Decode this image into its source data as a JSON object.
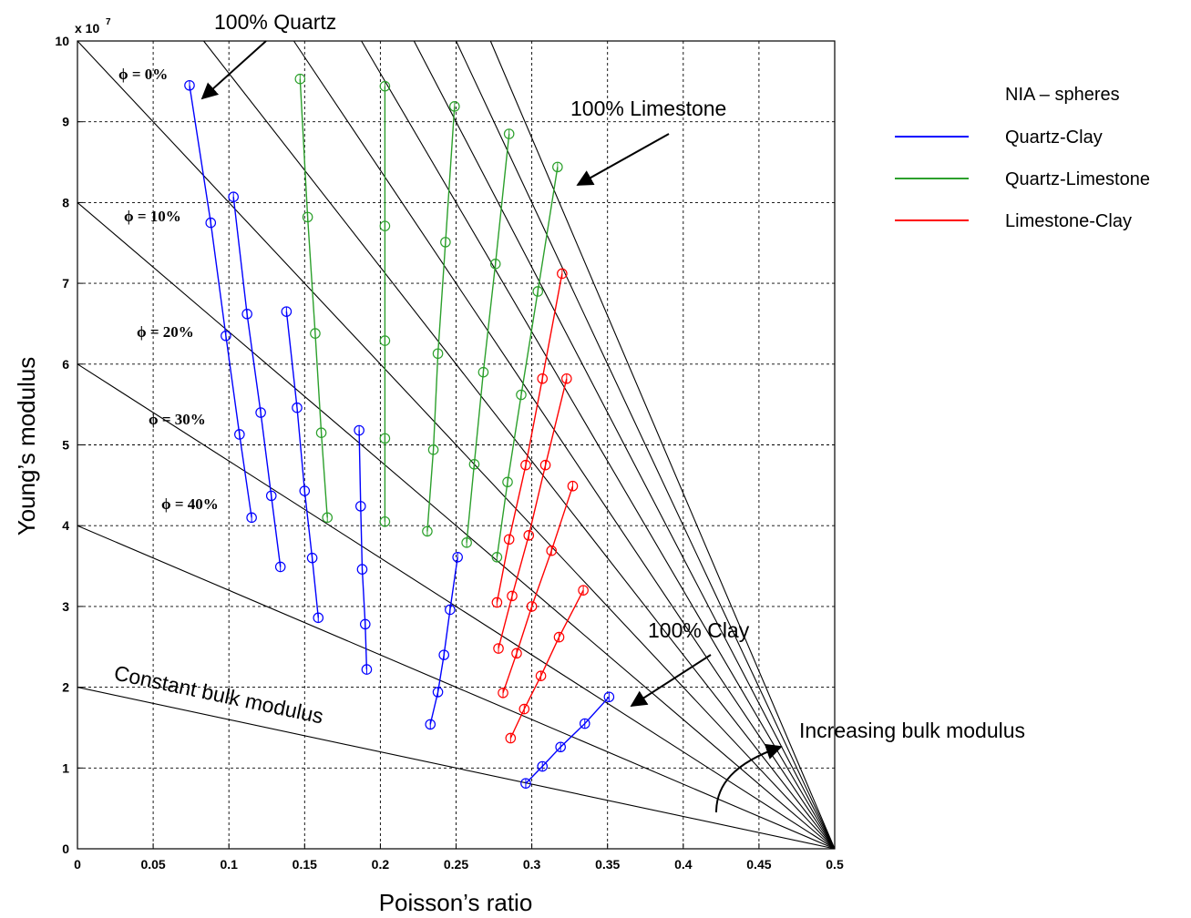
{
  "chart_data": {
    "type": "line",
    "xlabel": "Poisson’s ratio",
    "ylabel": "Young’s modulus",
    "exponent_label": "x 10",
    "exponent_power": "7",
    "xlim": [
      0,
      0.5
    ],
    "ylim": [
      0,
      100000000
    ],
    "grid": true,
    "x_ticks": [
      "0",
      "0.05",
      "0.1",
      "0.15",
      "0.2",
      "0.25",
      "0.3",
      "0.35",
      "0.4",
      "0.45",
      "0.5"
    ],
    "y_ticks": [
      "0",
      "1",
      "2",
      "3",
      "4",
      "5",
      "6",
      "7",
      "8",
      "9",
      "10"
    ],
    "legend": {
      "position": "right",
      "title": "NIA – spheres",
      "entries": [
        {
          "name": "Quartz-Clay",
          "color": "#0000ff"
        },
        {
          "name": "Quartz-Limestone",
          "color": "#2ca02c"
        },
        {
          "name": "Limestone-Clay",
          "color": "#ff0000"
        }
      ]
    },
    "bulk_modulus_lines": {
      "converge_at": [
        0.5,
        0
      ],
      "y_intercepts": [
        20000000,
        40000000,
        60000000,
        80000000,
        100000000,
        120000000,
        140000000,
        160000000,
        180000000,
        200000000,
        220000000
      ]
    },
    "series": [
      {
        "name": "Quartz-Clay",
        "color": "#0000ff",
        "lines": [
          [
            [
              0.074,
              94500000
            ],
            [
              0.088,
              77500000
            ],
            [
              0.098,
              63500000
            ],
            [
              0.107,
              51300000
            ],
            [
              0.115,
              41000000
            ]
          ],
          [
            [
              0.103,
              80700000
            ],
            [
              0.112,
              66200000
            ],
            [
              0.121,
              54000000
            ],
            [
              0.128,
              43700000
            ],
            [
              0.134,
              34900000
            ]
          ],
          [
            [
              0.138,
              66500000
            ],
            [
              0.145,
              54600000
            ],
            [
              0.15,
              44300000
            ],
            [
              0.155,
              36000000
            ],
            [
              0.159,
              28600000
            ]
          ],
          [
            [
              0.186,
              51800000
            ],
            [
              0.187,
              42400000
            ],
            [
              0.188,
              34600000
            ],
            [
              0.19,
              27800000
            ],
            [
              0.191,
              22200000
            ]
          ],
          [
            [
              0.251,
              36100000
            ],
            [
              0.246,
              29600000
            ],
            [
              0.242,
              24000000
            ],
            [
              0.238,
              19400000
            ],
            [
              0.233,
              15400000
            ]
          ],
          [
            [
              0.351,
              18800000
            ],
            [
              0.335,
              15500000
            ],
            [
              0.319,
              12600000
            ],
            [
              0.307,
              10200000
            ],
            [
              0.296,
              8100000
            ]
          ]
        ]
      },
      {
        "name": "Quartz-Limestone",
        "color": "#2ca02c",
        "lines": [
          [
            [
              0.147,
              95300000
            ],
            [
              0.152,
              78200000
            ],
            [
              0.157,
              63800000
            ],
            [
              0.161,
              51500000
            ],
            [
              0.165,
              41000000
            ]
          ],
          [
            [
              0.203,
              94400000
            ],
            [
              0.203,
              77100000
            ],
            [
              0.203,
              62900000
            ],
            [
              0.203,
              50800000
            ],
            [
              0.203,
              40500000
            ]
          ],
          [
            [
              0.249,
              91900000
            ],
            [
              0.243,
              75100000
            ],
            [
              0.238,
              61300000
            ],
            [
              0.235,
              49400000
            ],
            [
              0.231,
              39300000
            ]
          ],
          [
            [
              0.285,
              88500000
            ],
            [
              0.276,
              72400000
            ],
            [
              0.268,
              59000000
            ],
            [
              0.262,
              47600000
            ],
            [
              0.257,
              37900000
            ]
          ],
          [
            [
              0.317,
              84400000
            ],
            [
              0.304,
              69000000
            ],
            [
              0.293,
              56200000
            ],
            [
              0.284,
              45400000
            ],
            [
              0.277,
              36100000
            ]
          ]
        ]
      },
      {
        "name": "Limestone-Clay",
        "color": "#ff0000",
        "lines": [
          [
            [
              0.32,
              71200000
            ],
            [
              0.307,
              58200000
            ],
            [
              0.296,
              47500000
            ],
            [
              0.285,
              38300000
            ],
            [
              0.277,
              30500000
            ]
          ],
          [
            [
              0.323,
              58200000
            ],
            [
              0.309,
              47500000
            ],
            [
              0.298,
              38800000
            ],
            [
              0.287,
              31300000
            ],
            [
              0.278,
              24800000
            ]
          ],
          [
            [
              0.327,
              44900000
            ],
            [
              0.313,
              36900000
            ],
            [
              0.3,
              30000000
            ],
            [
              0.29,
              24200000
            ],
            [
              0.281,
              19300000
            ]
          ],
          [
            [
              0.334,
              32000000
            ],
            [
              0.318,
              26200000
            ],
            [
              0.306,
              21400000
            ],
            [
              0.295,
              17300000
            ],
            [
              0.286,
              13700000
            ]
          ]
        ]
      }
    ],
    "annotations": {
      "quartz": "100% Quartz",
      "limestone": "100% Limestone",
      "clay": "100% Clay",
      "constant_bulk": "Constant bulk modulus",
      "increasing_bulk": "Increasing bulk modulus",
      "porosity": [
        "ϕ = 0%",
        "ϕ = 10%",
        "ϕ = 20%",
        "ϕ = 30%",
        "ϕ = 40%"
      ]
    }
  }
}
